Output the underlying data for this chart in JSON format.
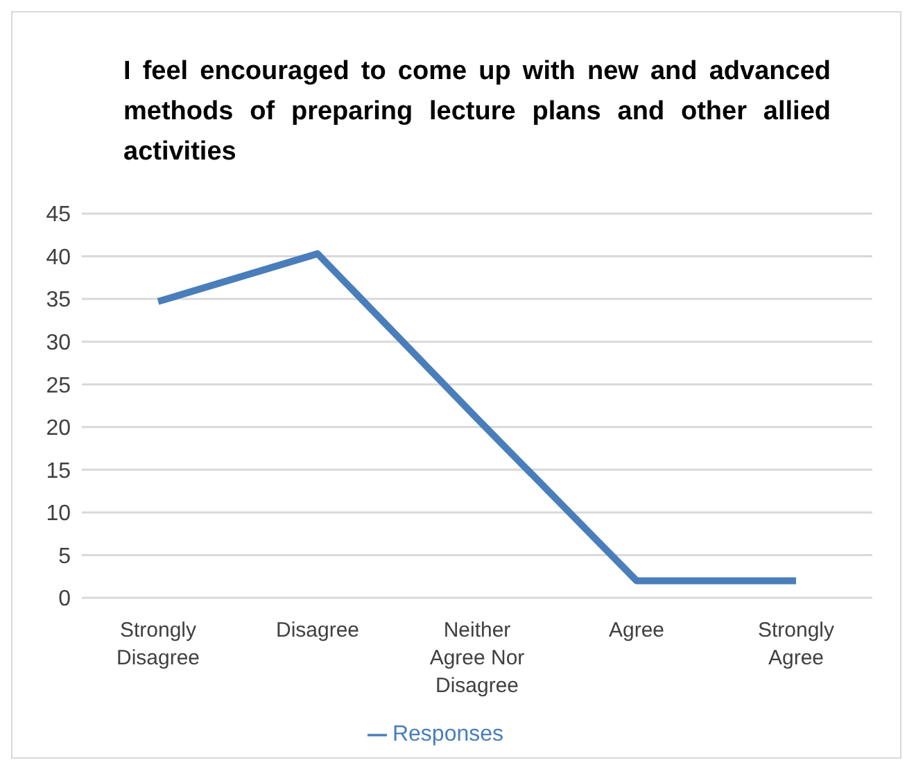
{
  "chart_data": {
    "type": "line",
    "title": "I feel encouraged to come up with new and advanced methods of preparing lecture plans and other allied activities",
    "categories": [
      "Strongly Disagree",
      "Disagree",
      "Neither Agree Nor Disagree",
      "Agree",
      "Strongly Agree"
    ],
    "series": [
      {
        "name": "Responses",
        "color": "#4a7ebb",
        "values": [
          34.7,
          40.3,
          21,
          2,
          2
        ]
      }
    ],
    "ylim": [
      0,
      45
    ],
    "yticks": [
      0,
      5,
      10,
      15,
      20,
      25,
      30,
      35,
      40,
      45
    ],
    "grid": "y",
    "legend": "bottom",
    "marker": "none"
  }
}
